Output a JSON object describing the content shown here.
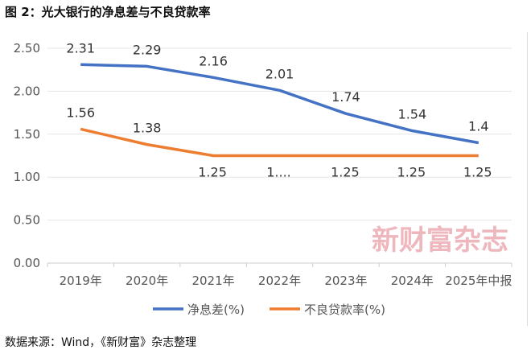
{
  "title": "图 2：光大银行的净息差与不良贷款率",
  "source": "数据来源：Wind，《新财富》杂志整理",
  "watermark": "新财富杂志",
  "chart_data": {
    "type": "line",
    "title": "图 2：光大银行的净息差与不良贷款率",
    "categories": [
      "2019年",
      "2020年",
      "2021年",
      "2022年",
      "2023年",
      "2024年",
      "2025年中报"
    ],
    "ylim": [
      0,
      2.5
    ],
    "yticks": [
      "0.00",
      "0.50",
      "1.00",
      "1.50",
      "2.00",
      "2.50"
    ],
    "grid": true,
    "legend": "bottom",
    "series": [
      {
        "name": "净息差(%)",
        "color": "#4472c4",
        "values": [
          2.31,
          2.29,
          2.16,
          2.01,
          1.74,
          1.54,
          1.4
        ],
        "labels": [
          "2.31",
          "2.29",
          "2.16",
          "2.01",
          "1.74",
          "1.54",
          "1.4"
        ]
      },
      {
        "name": "不良贷款率(%)",
        "color": "#ed7d31",
        "values": [
          1.56,
          1.38,
          1.25,
          1.25,
          1.25,
          1.25,
          1.25
        ],
        "labels": [
          "1.56",
          "1.38",
          "1.25",
          "1....",
          "1.25",
          "1.25",
          "1.25"
        ]
      }
    ]
  }
}
